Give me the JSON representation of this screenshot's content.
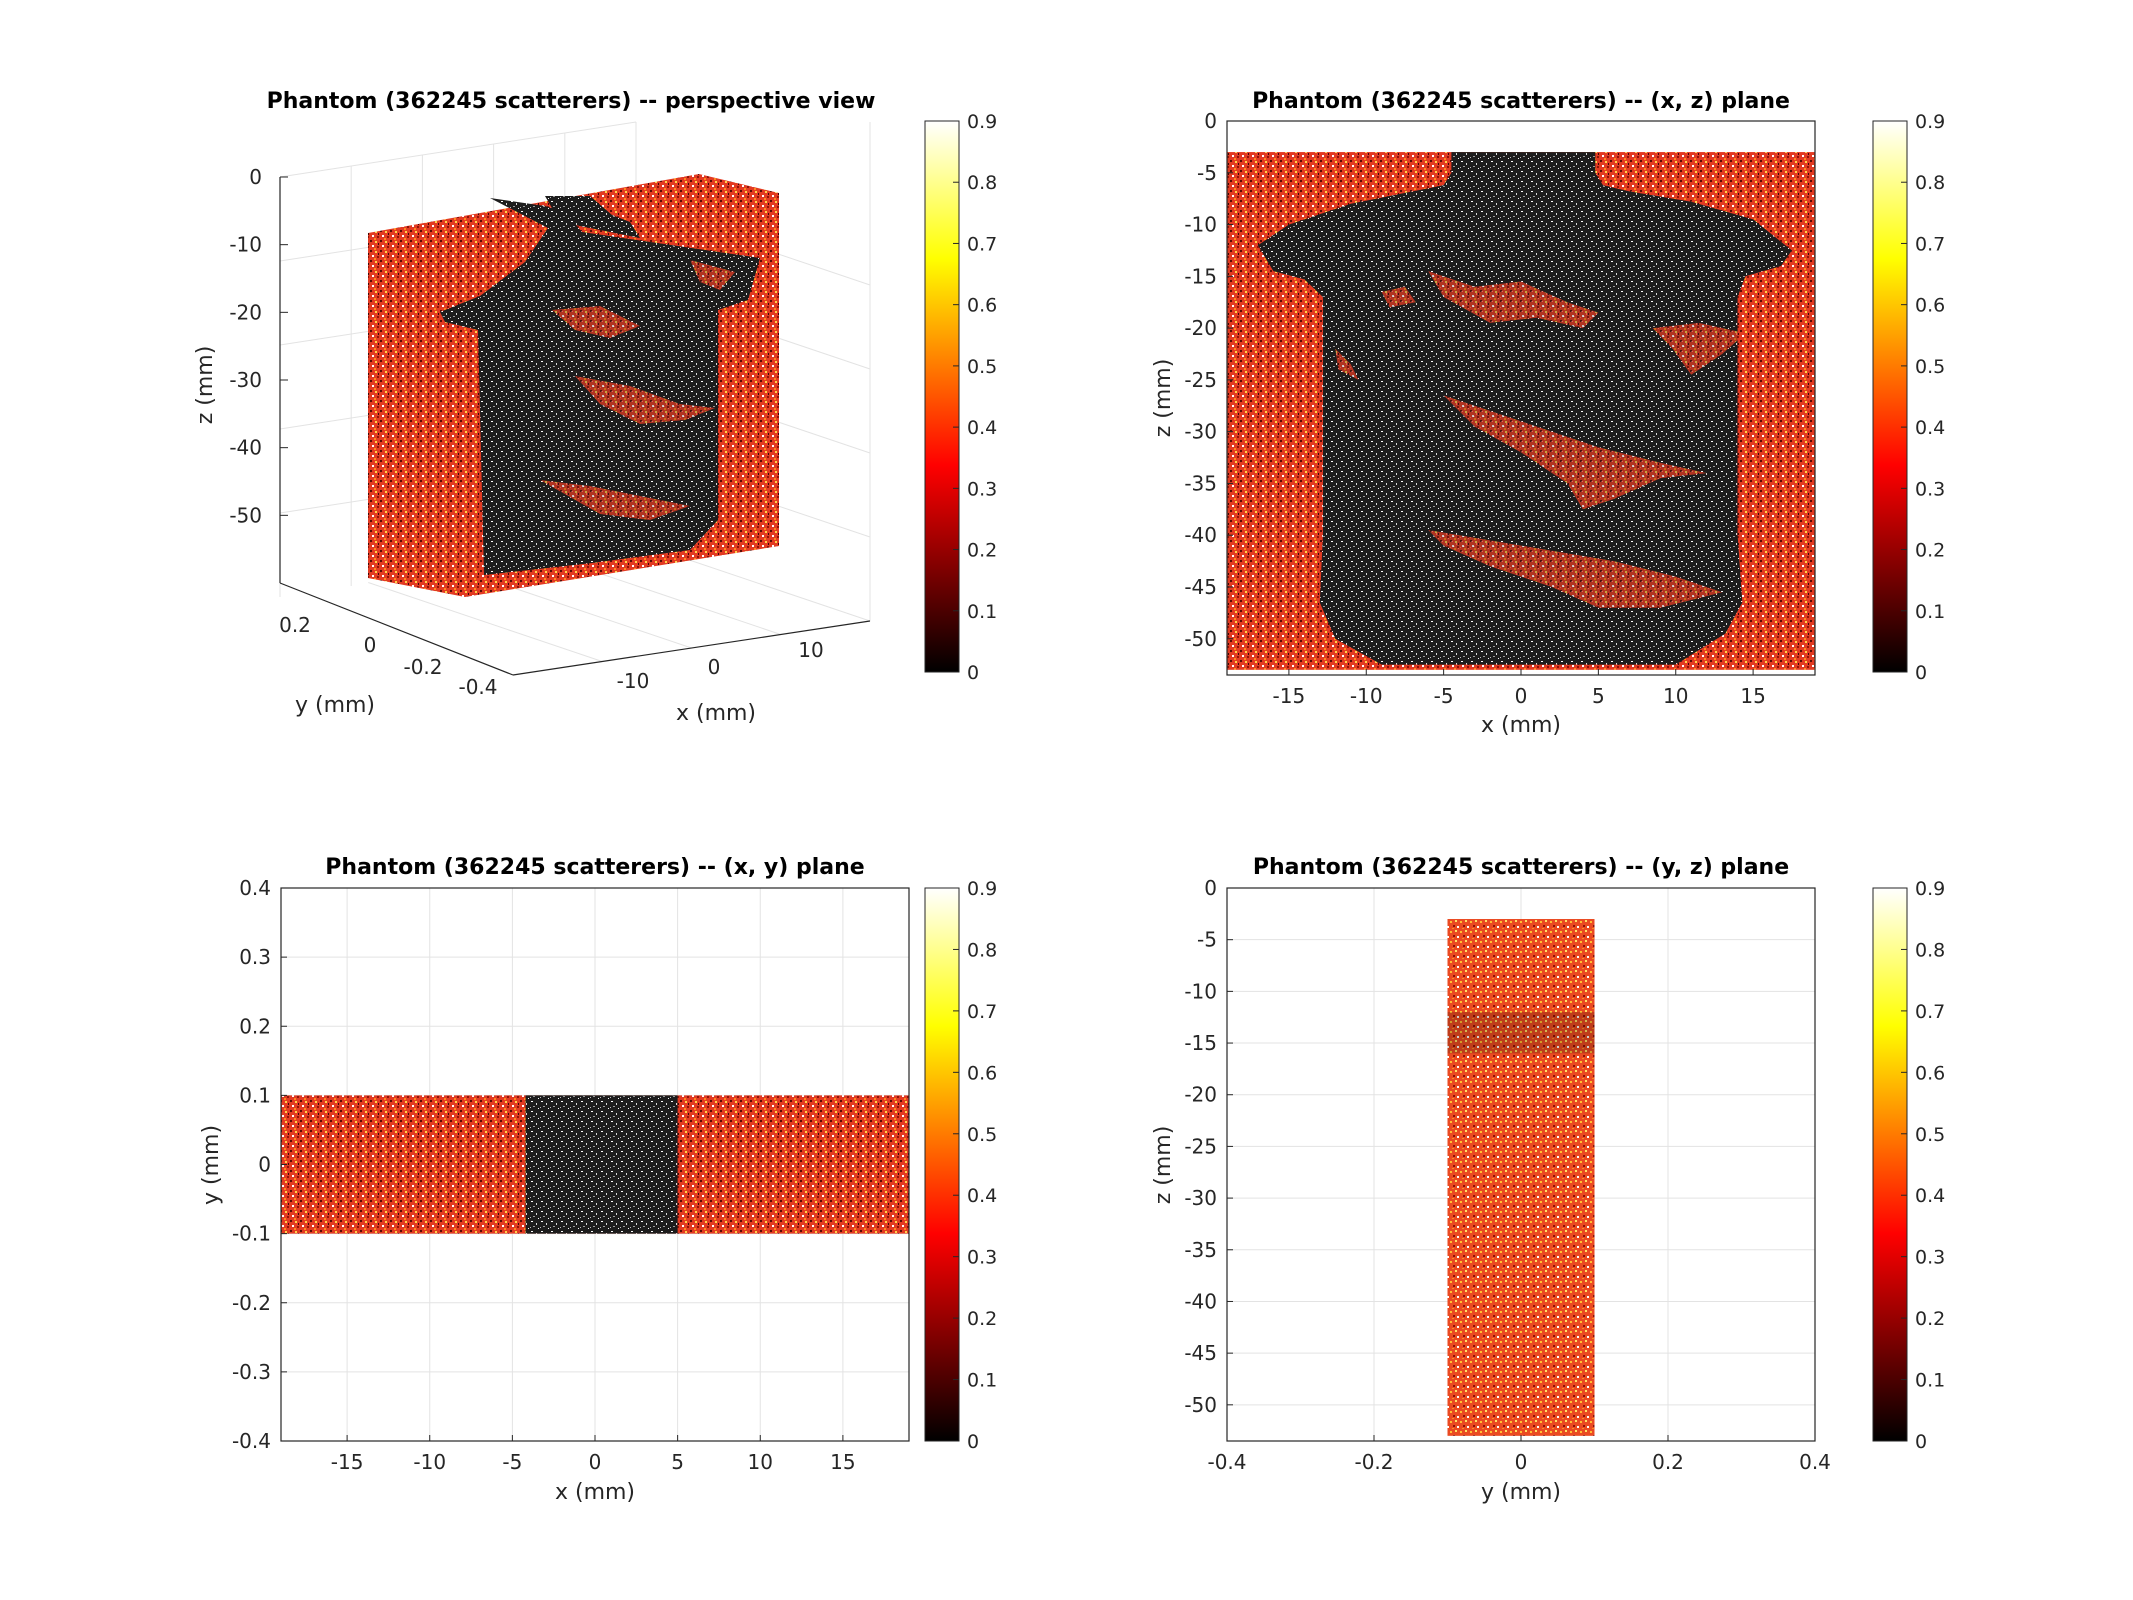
{
  "figure": {
    "background": "#ffffff"
  },
  "colormap": {
    "name": "hot",
    "range": [
      0,
      0.9
    ],
    "ticks": [
      "0",
      "0.1",
      "0.2",
      "0.3",
      "0.4",
      "0.5",
      "0.6",
      "0.7",
      "0.8",
      "0.9"
    ]
  },
  "colors": {
    "tissue": "#e23a22",
    "cyst": "#1d1d1d",
    "axis": "#262626",
    "grid": "#e3e3e3"
  },
  "chart_data": [
    {
      "id": "perspective",
      "type": "scatter",
      "view": "3d",
      "title": "Phantom (362245 scatterers) -- perspective view",
      "xlabel": "x (mm)",
      "ylabel": "y (mm)",
      "zlabel": "z (mm)",
      "x_ticks": [
        "-10",
        "0",
        "10"
      ],
      "y_ticks": [
        "0.2",
        "0",
        "-0.2",
        "-0.4"
      ],
      "z_ticks": [
        "0",
        "-10",
        "-20",
        "-30",
        "-40",
        "-50"
      ],
      "xlim": [
        -19,
        19
      ],
      "ylim": [
        -0.4,
        0.3
      ],
      "zlim": [
        -60,
        0
      ],
      "grid": true
    },
    {
      "id": "xz",
      "type": "scatter",
      "title": "Phantom (362245 scatterers) -- (x, z) plane",
      "xlabel": "x (mm)",
      "ylabel": "z (mm)",
      "xlim": [
        -19,
        19
      ],
      "ylim": [
        -53.5,
        0
      ],
      "x_ticks": [
        "-15",
        "-10",
        "-5",
        "0",
        "5",
        "10",
        "15"
      ],
      "y_ticks": [
        "0",
        "-5",
        "-10",
        "-15",
        "-20",
        "-25",
        "-30",
        "-35",
        "-40",
        "-45",
        "-50"
      ],
      "x_tick_values": [
        -15,
        -10,
        -5,
        0,
        5,
        10,
        15
      ],
      "y_tick_values": [
        0,
        -5,
        -10,
        -15,
        -20,
        -25,
        -30,
        -35,
        -40,
        -45,
        -50
      ],
      "tissue_extent": {
        "x": [
          -19,
          19
        ],
        "z": [
          -53,
          -3
        ]
      },
      "grid": false
    },
    {
      "id": "xy",
      "type": "scatter",
      "title": "Phantom (362245 scatterers) -- (x, y) plane",
      "xlabel": "x (mm)",
      "ylabel": "y (mm)",
      "xlim": [
        -19,
        19
      ],
      "ylim": [
        -0.4,
        0.4
      ],
      "x_ticks": [
        "-15",
        "-10",
        "-5",
        "0",
        "5",
        "10",
        "15"
      ],
      "y_ticks": [
        "0.4",
        "0.3",
        "0.2",
        "0.1",
        "0",
        "-0.1",
        "-0.2",
        "-0.3",
        "-0.4"
      ],
      "x_tick_values": [
        -15,
        -10,
        -5,
        0,
        5,
        10,
        15
      ],
      "y_tick_values": [
        0.4,
        0.3,
        0.2,
        0.1,
        0,
        -0.1,
        -0.2,
        -0.3,
        -0.4
      ],
      "tissue_extent": {
        "x": [
          -19,
          19
        ],
        "y": [
          -0.1,
          0.1
        ]
      },
      "cyst_extent": {
        "x": [
          -4.2,
          5
        ]
      },
      "grid": true
    },
    {
      "id": "yz",
      "type": "scatter",
      "title": "Phantom (362245 scatterers) -- (y, z) plane",
      "xlabel": "y (mm)",
      "ylabel": "z (mm)",
      "xlim": [
        -0.4,
        0.4
      ],
      "ylim": [
        -53.5,
        0
      ],
      "x_ticks": [
        "-0.4",
        "-0.2",
        "0",
        "0.2",
        "0.4"
      ],
      "y_ticks": [
        "0",
        "-5",
        "-10",
        "-15",
        "-20",
        "-25",
        "-30",
        "-35",
        "-40",
        "-45",
        "-50"
      ],
      "x_tick_values": [
        -0.4,
        -0.2,
        0,
        0.2,
        0.4
      ],
      "y_tick_values": [
        0,
        -5,
        -10,
        -15,
        -20,
        -25,
        -30,
        -35,
        -40,
        -45,
        -50
      ],
      "tissue_extent": {
        "y": [
          -0.1,
          0.1
        ],
        "z": [
          -53,
          -3
        ]
      },
      "grid": true
    }
  ]
}
